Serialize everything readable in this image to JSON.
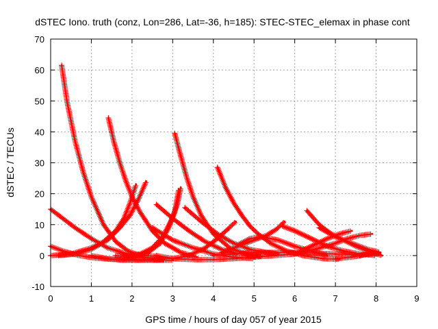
{
  "chart_data": {
    "type": "scatter",
    "title": "dSTEC Iono. truth (conz, Lon=286, Lat=-36, h=185): STEC-STEC_elemax in phase cont",
    "xlabel": "GPS time / hours of day 057 of year 2015",
    "ylabel": "dSTEC  / TECUs",
    "xlim": [
      0,
      9
    ],
    "ylim": [
      -10,
      70
    ],
    "xticks": [
      "0",
      "1",
      "2",
      "3",
      "4",
      "5",
      "6",
      "7",
      "8",
      "9"
    ],
    "yticks": [
      "-10",
      "0",
      "10",
      "20",
      "30",
      "40",
      "50",
      "60",
      "70"
    ],
    "grid": true,
    "marker": "plus",
    "color": "#ff0000",
    "series": [
      {
        "x": [
          0.27,
          0.4,
          0.6,
          0.8,
          1.0,
          1.3,
          1.6,
          1.9,
          2.1,
          2.3,
          2.6
        ],
        "y": [
          61.5,
          50,
          37,
          27,
          19,
          10,
          4.5,
          1.5,
          0.5,
          0,
          -0.2
        ]
      },
      {
        "x": [
          0.0,
          0.3,
          0.6,
          1.0,
          1.4,
          1.8,
          2.2,
          2.6,
          3.0
        ],
        "y": [
          15,
          12,
          9,
          5.5,
          2.5,
          0.8,
          -0.5,
          -1,
          -1
        ]
      },
      {
        "x": [
          0.0,
          0.3,
          0.7,
          1.1,
          1.5,
          1.9,
          2.3,
          2.8
        ],
        "y": [
          3,
          1.5,
          0,
          -0.8,
          -1.2,
          -1.3,
          -1.3,
          -1.3
        ]
      },
      {
        "x": [
          0.0,
          0.5,
          1.0,
          1.3,
          1.6,
          1.8,
          1.95,
          2.1
        ],
        "y": [
          0,
          0.5,
          2.5,
          4.5,
          8,
          12,
          17,
          23
        ]
      },
      {
        "x": [
          0.2,
          0.6,
          1.0,
          1.4,
          1.7,
          1.95,
          2.15,
          2.35
        ],
        "y": [
          0,
          0.5,
          2,
          5,
          9,
          13,
          18,
          24
        ]
      },
      {
        "x": [
          1.42,
          1.55,
          1.7,
          1.85,
          2.0,
          2.2,
          2.5,
          2.8,
          3.2,
          3.6
        ],
        "y": [
          44.5,
          37,
          30,
          24,
          19,
          14,
          8,
          4,
          1,
          -0.5
        ]
      },
      {
        "x": [
          1.0,
          1.4,
          1.8,
          2.2,
          2.6,
          3.0
        ],
        "y": [
          0,
          -1,
          -1.5,
          -1.5,
          -1.5,
          -1.5
        ]
      },
      {
        "x": [
          1.6,
          2.0,
          2.4,
          2.7,
          2.9,
          3.05,
          3.15
        ],
        "y": [
          0,
          -0.5,
          1,
          4,
          9,
          14,
          21.5
        ]
      },
      {
        "x": [
          1.8,
          2.2,
          2.5,
          2.75,
          2.95,
          3.1,
          3.2
        ],
        "y": [
          0,
          0.5,
          2.5,
          6,
          11,
          16,
          22
        ]
      },
      {
        "x": [
          2.6,
          3.0,
          3.4,
          3.8,
          4.2,
          4.6
        ],
        "y": [
          16.5,
          12,
          8,
          4.5,
          2,
          0.5
        ]
      },
      {
        "x": [
          2.5,
          3.0,
          3.5,
          4.0,
          4.5,
          5.0
        ],
        "y": [
          9,
          5,
          2.5,
          0.5,
          -0.5,
          -1
        ]
      },
      {
        "x": [
          3.05,
          3.2,
          3.35,
          3.5,
          3.7,
          4.0,
          4.4,
          4.8,
          5.2
        ],
        "y": [
          39.5,
          32,
          25,
          19,
          13,
          7,
          2.5,
          0.5,
          -0.3
        ]
      },
      {
        "x": [
          3.3,
          3.7,
          4.1,
          4.5,
          4.9,
          5.3,
          5.6
        ],
        "y": [
          15.5,
          11,
          7,
          4,
          2,
          1,
          0.5
        ]
      },
      {
        "x": [
          2.6,
          3.0,
          3.5,
          4.0,
          4.5,
          5.0,
          5.5
        ],
        "y": [
          0,
          -1,
          -1.3,
          -1.3,
          -1,
          -0.5,
          0
        ]
      },
      {
        "x": [
          3.0,
          3.4,
          3.8,
          4.1,
          4.35,
          4.55
        ],
        "y": [
          -1,
          0,
          2.5,
          5.5,
          8.5,
          11
        ]
      },
      {
        "x": [
          4.1,
          4.3,
          4.5,
          4.7,
          4.9,
          5.1,
          5.4,
          5.8,
          6.2,
          6.7,
          7.1
        ],
        "y": [
          28.5,
          22,
          17,
          13,
          9.5,
          7,
          4,
          1.5,
          0,
          -1,
          -1.2
        ]
      },
      {
        "x": [
          4.0,
          4.5,
          5.0,
          5.5,
          6.0,
          6.5,
          7.0,
          7.5
        ],
        "y": [
          0,
          0.5,
          1,
          1,
          1,
          0.8,
          0.5,
          0.3
        ]
      },
      {
        "x": [
          4.2,
          4.6,
          5.0,
          5.3,
          5.55,
          5.75
        ],
        "y": [
          1,
          3,
          5,
          6.5,
          8.5,
          11
        ]
      },
      {
        "x": [
          4.6,
          4.9,
          5.2,
          5.6,
          6.0,
          6.4,
          6.8
        ],
        "y": [
          3.5,
          5.5,
          6,
          5,
          3,
          1.5,
          0
        ]
      },
      {
        "x": [
          5.7,
          6.0,
          6.4,
          6.8,
          7.2,
          7.6,
          8.0
        ],
        "y": [
          9.5,
          8,
          5.5,
          3,
          1.5,
          0.5,
          0
        ]
      },
      {
        "x": [
          6.3,
          6.6,
          6.9,
          7.2,
          7.5,
          7.8,
          8.1
        ],
        "y": [
          14.5,
          10,
          7,
          5,
          3,
          1.5,
          0.5
        ]
      },
      {
        "x": [
          5.5,
          6.0,
          6.5,
          7.0,
          7.3,
          7.6,
          7.9
        ],
        "y": [
          0,
          0.5,
          2,
          4,
          5.5,
          6.5,
          7
        ]
      },
      {
        "x": [
          6.0,
          6.4,
          6.8,
          7.1,
          7.4
        ],
        "y": [
          0.5,
          3,
          5.5,
          7,
          8
        ]
      },
      {
        "x": [
          6.6,
          7.0,
          7.4,
          7.8,
          8.1
        ],
        "y": [
          9,
          6,
          4,
          2,
          1
        ]
      },
      {
        "x": [
          7.0,
          7.4,
          7.8,
          8.1
        ],
        "y": [
          -1,
          -0.5,
          0.5,
          1
        ]
      },
      {
        "x": [
          7.6,
          7.8,
          8.0,
          8.15
        ],
        "y": [
          0,
          0.5,
          0.5,
          0
        ]
      }
    ]
  }
}
